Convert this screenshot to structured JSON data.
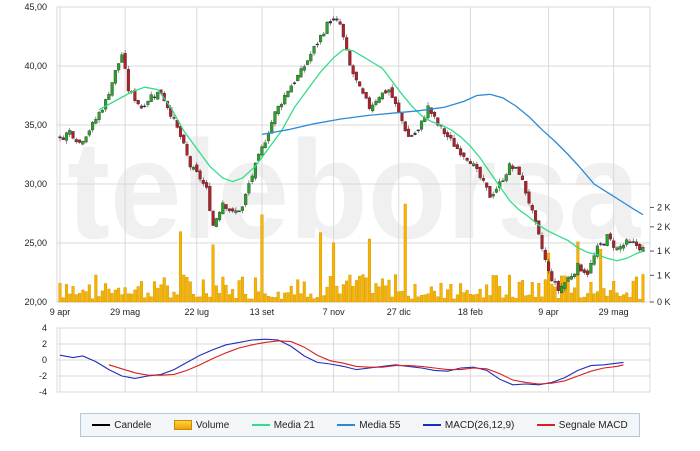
{
  "colors": {
    "grid": "#d9d9d9",
    "up_candle": "#2ca02c",
    "down_candle": "#b0202a",
    "volume_fill": "#f5b400",
    "media21": "#33dd88",
    "media55": "#2b8ad6",
    "macd": "#1f2eb8",
    "signal": "#d92020"
  },
  "watermark": "teleborsa",
  "legend": {
    "items": [
      {
        "label": "Candele",
        "kind": "line",
        "color": "#000000"
      },
      {
        "label": "Volume",
        "kind": "box",
        "color": "#f5b400"
      },
      {
        "label": "Media 21",
        "kind": "line",
        "color": "#33dd88"
      },
      {
        "label": "Media 55",
        "kind": "line",
        "color": "#2b8ad6"
      },
      {
        "label": "MACD(26,12,9)",
        "kind": "line",
        "color": "#1f2eb8"
      },
      {
        "label": "Segnale MACD",
        "kind": "line",
        "color": "#d92020"
      }
    ]
  },
  "chart_data": [
    {
      "type": "candlestick",
      "title": "",
      "xlabel": "",
      "ylabel": "",
      "x_ticks": [
        "9 apr",
        "29 mag",
        "22 lug",
        "13 set",
        "7 nov",
        "27 dic",
        "18 feb",
        "9 apr",
        "29 mag"
      ],
      "x_tick_index": [
        0,
        20,
        42,
        62,
        84,
        104,
        126,
        150,
        170
      ],
      "n_sessions": 180,
      "y_ticks": [
        "45,00",
        "40,00",
        "35,00",
        "30,00",
        "25,00",
        "20,00"
      ],
      "ylim": [
        20,
        45
      ],
      "grid": true,
      "volume_axis_ticks": [
        "2 K",
        "2 K",
        "1 K",
        "1 K",
        "0 K"
      ],
      "volume_max": 2000,
      "price_path": [
        [
          0,
          33.8
        ],
        [
          3,
          34.5
        ],
        [
          6,
          33.5
        ],
        [
          10,
          35.0
        ],
        [
          14,
          37.0
        ],
        [
          17,
          39.5
        ],
        [
          19,
          41.0
        ],
        [
          21,
          38.0
        ],
        [
          25,
          36.5
        ],
        [
          28,
          37.5
        ],
        [
          31,
          37.8
        ],
        [
          34,
          36.0
        ],
        [
          37,
          34.0
        ],
        [
          40,
          31.5
        ],
        [
          43,
          30.5
        ],
        [
          45,
          29.5
        ],
        [
          47,
          26.5
        ],
        [
          50,
          28.5
        ],
        [
          53,
          27.5
        ],
        [
          56,
          28.0
        ],
        [
          58,
          30.0
        ],
        [
          62,
          33.0
        ],
        [
          66,
          36.0
        ],
        [
          70,
          38.0
        ],
        [
          74,
          39.5
        ],
        [
          77,
          41.0
        ],
        [
          80,
          42.5
        ],
        [
          83,
          44.0
        ],
        [
          86,
          43.5
        ],
        [
          89,
          40.0
        ],
        [
          92,
          38.0
        ],
        [
          95,
          36.5
        ],
        [
          98,
          37.5
        ],
        [
          101,
          38.0
        ],
        [
          104,
          36.0
        ],
        [
          107,
          34.0
        ],
        [
          110,
          34.5
        ],
        [
          113,
          36.5
        ],
        [
          116,
          35.0
        ],
        [
          119,
          34.0
        ],
        [
          122,
          33.0
        ],
        [
          126,
          32.0
        ],
        [
          129,
          30.5
        ],
        [
          132,
          29.0
        ],
        [
          135,
          30.0
        ],
        [
          138,
          31.5
        ],
        [
          141,
          31.0
        ],
        [
          144,
          28.5
        ],
        [
          147,
          25.5
        ],
        [
          150,
          22.5
        ],
        [
          153,
          21.0
        ],
        [
          156,
          22.0
        ],
        [
          159,
          23.0
        ],
        [
          162,
          22.5
        ],
        [
          165,
          24.5
        ],
        [
          168,
          25.5
        ],
        [
          171,
          24.5
        ],
        [
          174,
          25.0
        ],
        [
          177,
          24.8
        ],
        [
          179,
          24.5
        ]
      ],
      "media21": [
        [
          12,
          36.3
        ],
        [
          18,
          37.2
        ],
        [
          22,
          37.8
        ],
        [
          26,
          38.2
        ],
        [
          30,
          38.0
        ],
        [
          34,
          36.5
        ],
        [
          38,
          34.5
        ],
        [
          42,
          33.0
        ],
        [
          46,
          31.5
        ],
        [
          50,
          30.5
        ],
        [
          53,
          30.2
        ],
        [
          56,
          30.5
        ],
        [
          60,
          31.5
        ],
        [
          64,
          33.0
        ],
        [
          68,
          34.5
        ],
        [
          72,
          36.5
        ],
        [
          76,
          38.0
        ],
        [
          80,
          39.5
        ],
        [
          84,
          40.7
        ],
        [
          87,
          41.4
        ],
        [
          90,
          41.3
        ],
        [
          93,
          40.8
        ],
        [
          96,
          40.3
        ],
        [
          99,
          39.8
        ],
        [
          102,
          38.7
        ],
        [
          105,
          37.6
        ],
        [
          108,
          36.6
        ],
        [
          111,
          35.8
        ],
        [
          114,
          35.3
        ],
        [
          117,
          35.0
        ],
        [
          120,
          34.6
        ],
        [
          123,
          34.0
        ],
        [
          126,
          33.2
        ],
        [
          129,
          32.2
        ],
        [
          132,
          31.0
        ],
        [
          135,
          29.8
        ],
        [
          138,
          28.6
        ],
        [
          141,
          27.8
        ],
        [
          144,
          27.2
        ],
        [
          147,
          26.5
        ],
        [
          150,
          26.0
        ],
        [
          153,
          25.6
        ],
        [
          156,
          25.2
        ],
        [
          159,
          24.6
        ],
        [
          162,
          24.2
        ],
        [
          165,
          24.0
        ],
        [
          168,
          23.7
        ],
        [
          171,
          23.5
        ],
        [
          174,
          23.7
        ],
        [
          177,
          24.1
        ],
        [
          179,
          24.3
        ]
      ],
      "media55": [
        [
          62,
          34.2
        ],
        [
          70,
          34.6
        ],
        [
          78,
          35.1
        ],
        [
          86,
          35.5
        ],
        [
          94,
          35.8
        ],
        [
          102,
          36.0
        ],
        [
          110,
          36.2
        ],
        [
          118,
          36.5
        ],
        [
          124,
          37.0
        ],
        [
          128,
          37.5
        ],
        [
          132,
          37.6
        ],
        [
          136,
          37.3
        ],
        [
          140,
          36.6
        ],
        [
          144,
          35.7
        ],
        [
          148,
          34.6
        ],
        [
          152,
          33.6
        ],
        [
          156,
          32.5
        ],
        [
          160,
          31.3
        ],
        [
          164,
          30.0
        ],
        [
          168,
          29.3
        ],
        [
          172,
          28.6
        ],
        [
          176,
          27.9
        ],
        [
          179,
          27.4
        ]
      ],
      "volume_spikes": [
        [
          37,
          1450
        ],
        [
          47,
          1180
        ],
        [
          62,
          1800
        ],
        [
          80,
          1430
        ],
        [
          84,
          1220
        ],
        [
          95,
          1300
        ],
        [
          106,
          2020
        ],
        [
          150,
          1010
        ],
        [
          159,
          1240
        ],
        [
          166,
          1090
        ]
      ]
    },
    {
      "type": "line",
      "title": "",
      "xlabel": "",
      "ylabel": "",
      "y_ticks": [
        "4",
        "2",
        "0",
        "-2",
        "-4"
      ],
      "ylim": [
        -4,
        4
      ],
      "grid": true,
      "series": [
        {
          "name": "MACD(26,12,9)",
          "color": "#1f2eb8",
          "points": [
            [
              0,
              0.6
            ],
            [
              4,
              0.3
            ],
            [
              7,
              0.5
            ],
            [
              11,
              -0.2
            ],
            [
              15,
              -1.2
            ],
            [
              19,
              -2.0
            ],
            [
              23,
              -2.3
            ],
            [
              27,
              -2.0
            ],
            [
              31,
              -1.8
            ],
            [
              35,
              -1.2
            ],
            [
              39,
              -0.3
            ],
            [
              43,
              0.6
            ],
            [
              47,
              1.3
            ],
            [
              51,
              1.9
            ],
            [
              55,
              2.2
            ],
            [
              59,
              2.5
            ],
            [
              63,
              2.6
            ],
            [
              67,
              2.5
            ],
            [
              71,
              1.7
            ],
            [
              75,
              0.5
            ],
            [
              79,
              -0.3
            ],
            [
              83,
              -0.5
            ],
            [
              87,
              -0.8
            ],
            [
              91,
              -1.2
            ],
            [
              95,
              -1.0
            ],
            [
              99,
              -0.8
            ],
            [
              103,
              -0.6
            ],
            [
              107,
              -0.8
            ],
            [
              111,
              -1.0
            ],
            [
              115,
              -1.3
            ],
            [
              119,
              -1.4
            ],
            [
              123,
              -1.0
            ],
            [
              127,
              -0.9
            ],
            [
              131,
              -1.3
            ],
            [
              135,
              -2.4
            ],
            [
              139,
              -3.1
            ],
            [
              143,
              -3.0
            ],
            [
              147,
              -3.1
            ],
            [
              151,
              -2.8
            ],
            [
              155,
              -2.2
            ],
            [
              159,
              -1.3
            ],
            [
              163,
              -0.7
            ],
            [
              167,
              -0.6
            ],
            [
              171,
              -0.4
            ],
            [
              173,
              -0.3
            ]
          ]
        },
        {
          "name": "Segnale MACD",
          "color": "#d92020",
          "points": [
            [
              15,
              -0.6
            ],
            [
              19,
              -1.1
            ],
            [
              23,
              -1.6
            ],
            [
              27,
              -1.9
            ],
            [
              31,
              -1.9
            ],
            [
              35,
              -1.8
            ],
            [
              39,
              -1.3
            ],
            [
              43,
              -0.6
            ],
            [
              47,
              0.2
            ],
            [
              51,
              0.9
            ],
            [
              55,
              1.5
            ],
            [
              59,
              1.9
            ],
            [
              63,
              2.2
            ],
            [
              67,
              2.4
            ],
            [
              71,
              2.3
            ],
            [
              75,
              1.6
            ],
            [
              79,
              0.6
            ],
            [
              83,
              -0.1
            ],
            [
              87,
              -0.4
            ],
            [
              91,
              -0.8
            ],
            [
              95,
              -0.9
            ],
            [
              99,
              -0.9
            ],
            [
              103,
              -0.7
            ],
            [
              107,
              -0.7
            ],
            [
              111,
              -0.8
            ],
            [
              115,
              -1.0
            ],
            [
              119,
              -1.2
            ],
            [
              123,
              -1.2
            ],
            [
              127,
              -1.0
            ],
            [
              131,
              -1.1
            ],
            [
              135,
              -1.7
            ],
            [
              139,
              -2.5
            ],
            [
              143,
              -2.8
            ],
            [
              147,
              -3.0
            ],
            [
              151,
              -2.9
            ],
            [
              155,
              -2.6
            ],
            [
              159,
              -2.0
            ],
            [
              163,
              -1.4
            ],
            [
              167,
              -1.0
            ],
            [
              171,
              -0.8
            ],
            [
              173,
              -0.6
            ]
          ]
        }
      ]
    }
  ]
}
